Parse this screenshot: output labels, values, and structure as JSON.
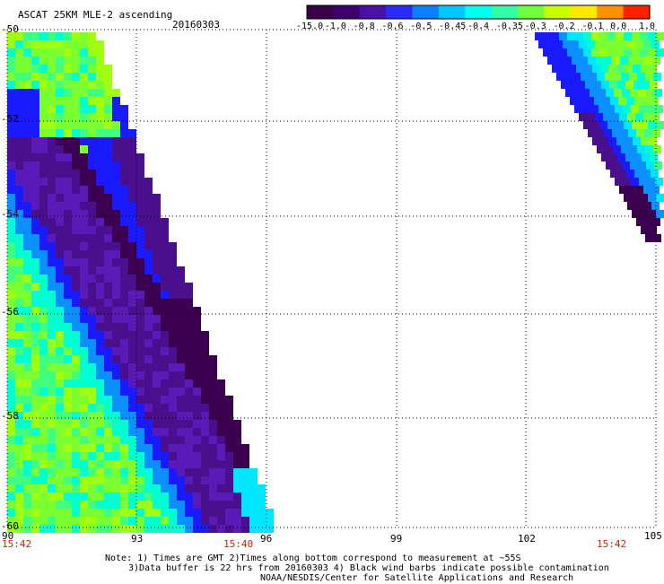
{
  "header": {
    "title": "ASCAT 25KM MLE-2 ascending",
    "date": "20160303"
  },
  "colorbar": {
    "labels": [
      "-15.0",
      "-1.0",
      "-0.8",
      "-0.6",
      "-0.5",
      "-0.45",
      "-0.4",
      "-0.35",
      "-0.3",
      "-0.2",
      "-0.1",
      "0.0",
      "1.0"
    ],
    "colors": [
      "#3a0048",
      "#40006c",
      "#4a10a8",
      "#2a2cf8",
      "#0a80ff",
      "#00c8ff",
      "#00ffee",
      "#30ffa8",
      "#70ff40",
      "#c8ff00",
      "#ffe800",
      "#ff9000",
      "#ff2000"
    ]
  },
  "axes": {
    "y_labels": [
      "-50",
      "-52",
      "-54",
      "-56",
      "-58",
      "-60"
    ],
    "x_labels": [
      "90",
      "93",
      "96",
      "99",
      "102",
      "105"
    ],
    "times": [
      "15:42",
      "15:40",
      "15:42"
    ]
  },
  "map": {
    "lat_range": [
      -60,
      -50
    ],
    "lon_range": [
      90,
      105
    ],
    "grid": true
  },
  "notes": {
    "line1": "Note: 1) Times are GMT 2)Times along bottom correspond to measurement at ~55S",
    "line2": "3)Data buffer is 22 hrs from 20160303 4) Black wind barbs indicate possible contamination",
    "line3": "NOAA/NESDIS/Center for Satellite Applications and Research"
  }
}
